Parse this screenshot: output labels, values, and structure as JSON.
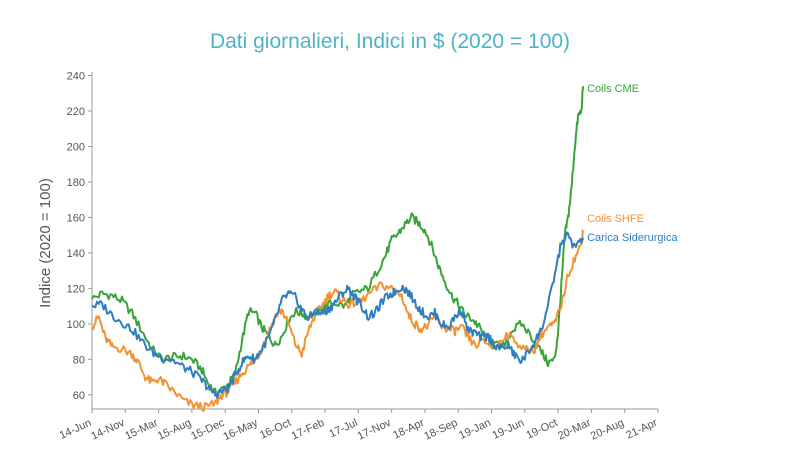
{
  "chart_data": {
    "type": "line",
    "title": "Dati giornalieri, Indici in $ (2020 = 100)",
    "xlabel": "",
    "ylabel": "Indice (2020 = 100)",
    "ylim": [
      52,
      242
    ],
    "y_ticks": [
      60,
      80,
      100,
      120,
      140,
      160,
      180,
      200,
      220,
      240
    ],
    "x_ticks": [
      "14-Jun",
      "14-Nov",
      "15-Mar",
      "15-Aug",
      "15-Dec",
      "16-May",
      "16-Oct",
      "17-Feb",
      "17-Jul",
      "17-Nov",
      "18-Apr",
      "18-Sep",
      "19-Jan",
      "19-Jun",
      "19-Oct",
      "20-Mar",
      "20-Aug",
      "21-Apr"
    ],
    "x_range": [
      "14-Jun",
      "21-Apr"
    ],
    "grid": false,
    "legend": "inline labels at right end of lines",
    "series": [
      {
        "name": "Coils CME",
        "color": "#3aa43a",
        "points": [
          [
            0,
            114
          ],
          [
            0.3,
            117
          ],
          [
            0.6,
            116
          ],
          [
            0.9,
            113
          ],
          [
            1.2,
            106
          ],
          [
            1.5,
            96
          ],
          [
            1.8,
            86
          ],
          [
            2.1,
            80
          ],
          [
            2.4,
            81
          ],
          [
            2.7,
            82
          ],
          [
            3.0,
            80
          ],
          [
            3.3,
            74
          ],
          [
            3.5,
            66
          ],
          [
            3.7,
            61
          ],
          [
            3.9,
            63
          ],
          [
            4.1,
            66
          ],
          [
            4.3,
            72
          ],
          [
            4.5,
            90
          ],
          [
            4.7,
            107
          ],
          [
            4.9,
            106
          ],
          [
            5.1,
            98
          ],
          [
            5.3,
            93
          ],
          [
            5.5,
            88
          ],
          [
            5.7,
            93
          ],
          [
            5.9,
            102
          ],
          [
            6.1,
            107
          ],
          [
            6.3,
            106
          ],
          [
            6.5,
            104
          ],
          [
            6.8,
            107
          ],
          [
            7.0,
            110
          ],
          [
            7.3,
            112
          ],
          [
            7.6,
            110
          ],
          [
            7.8,
            116
          ],
          [
            8.0,
            118
          ],
          [
            8.3,
            120
          ],
          [
            8.6,
            131
          ],
          [
            8.8,
            138
          ],
          [
            9.0,
            147
          ],
          [
            9.2,
            151
          ],
          [
            9.4,
            156
          ],
          [
            9.6,
            160
          ],
          [
            9.8,
            157
          ],
          [
            10.0,
            153
          ],
          [
            10.2,
            144
          ],
          [
            10.4,
            133
          ],
          [
            10.6,
            124
          ],
          [
            10.8,
            116
          ],
          [
            11.0,
            111
          ],
          [
            11.2,
            105
          ],
          [
            11.4,
            103
          ],
          [
            11.6,
            99
          ],
          [
            11.8,
            93
          ],
          [
            12.0,
            90
          ],
          [
            12.3,
            86
          ],
          [
            12.6,
            96
          ],
          [
            12.9,
            100
          ],
          [
            13.2,
            93
          ],
          [
            13.5,
            84
          ],
          [
            13.7,
            78
          ],
          [
            13.9,
            80
          ],
          [
            14.0,
            96
          ],
          [
            14.1,
            122
          ],
          [
            14.2,
            150
          ],
          [
            14.3,
            160
          ],
          [
            14.4,
            176
          ],
          [
            14.5,
            200
          ],
          [
            14.6,
            217
          ],
          [
            14.7,
            220
          ],
          [
            14.75,
            234
          ]
        ]
      },
      {
        "name": "Coils SHFE",
        "color": "#f39233",
        "points": [
          [
            0,
            98
          ],
          [
            0.2,
            104
          ],
          [
            0.4,
            92
          ],
          [
            0.6,
            87
          ],
          [
            0.9,
            86
          ],
          [
            1.2,
            83
          ],
          [
            1.4,
            78
          ],
          [
            1.6,
            70
          ],
          [
            1.8,
            67
          ],
          [
            2.0,
            69
          ],
          [
            2.2,
            66
          ],
          [
            2.5,
            61
          ],
          [
            2.8,
            56
          ],
          [
            3.1,
            54
          ],
          [
            3.4,
            53
          ],
          [
            3.7,
            55
          ],
          [
            3.9,
            60
          ],
          [
            4.1,
            62
          ],
          [
            4.3,
            67
          ],
          [
            4.5,
            72
          ],
          [
            4.7,
            76
          ],
          [
            4.9,
            80
          ],
          [
            5.1,
            86
          ],
          [
            5.3,
            95
          ],
          [
            5.5,
            104
          ],
          [
            5.7,
            108
          ],
          [
            5.9,
            100
          ],
          [
            6.1,
            89
          ],
          [
            6.3,
            83
          ],
          [
            6.5,
            96
          ],
          [
            6.7,
            105
          ],
          [
            6.9,
            110
          ],
          [
            7.1,
            116
          ],
          [
            7.3,
            118
          ],
          [
            7.5,
            114
          ],
          [
            7.7,
            111
          ],
          [
            7.9,
            112
          ],
          [
            8.1,
            113
          ],
          [
            8.4,
            118
          ],
          [
            8.7,
            122
          ],
          [
            9.0,
            120
          ],
          [
            9.3,
            116
          ],
          [
            9.5,
            105
          ],
          [
            9.7,
            100
          ],
          [
            9.9,
            97
          ],
          [
            10.1,
            99
          ],
          [
            10.3,
            104
          ],
          [
            10.5,
            99
          ],
          [
            10.7,
            97
          ],
          [
            10.9,
            96
          ],
          [
            11.1,
            98
          ],
          [
            11.3,
            92
          ],
          [
            11.5,
            88
          ],
          [
            11.8,
            90
          ],
          [
            12.1,
            86
          ],
          [
            12.4,
            94
          ],
          [
            12.7,
            91
          ],
          [
            13.0,
            85
          ],
          [
            13.3,
            86
          ],
          [
            13.5,
            94
          ],
          [
            13.7,
            98
          ],
          [
            13.9,
            100
          ],
          [
            14.1,
            111
          ],
          [
            14.3,
            128
          ],
          [
            14.5,
            137
          ],
          [
            14.7,
            145
          ],
          [
            14.75,
            153
          ]
        ]
      },
      {
        "name": "Carica Siderurgica",
        "color": "#2e7ec1",
        "points": [
          [
            0,
            110
          ],
          [
            0.3,
            111
          ],
          [
            0.6,
            105
          ],
          [
            0.9,
            101
          ],
          [
            1.2,
            97
          ],
          [
            1.5,
            90
          ],
          [
            1.8,
            84
          ],
          [
            2.1,
            81
          ],
          [
            2.4,
            80
          ],
          [
            2.7,
            76
          ],
          [
            3.0,
            73
          ],
          [
            3.3,
            68
          ],
          [
            3.5,
            64
          ],
          [
            3.7,
            60
          ],
          [
            3.9,
            62
          ],
          [
            4.1,
            64
          ],
          [
            4.3,
            71
          ],
          [
            4.5,
            78
          ],
          [
            4.7,
            82
          ],
          [
            4.9,
            80
          ],
          [
            5.1,
            86
          ],
          [
            5.3,
            92
          ],
          [
            5.5,
            102
          ],
          [
            5.7,
            113
          ],
          [
            5.9,
            117
          ],
          [
            6.1,
            115
          ],
          [
            6.3,
            108
          ],
          [
            6.5,
            103
          ],
          [
            6.7,
            107
          ],
          [
            6.9,
            106
          ],
          [
            7.1,
            108
          ],
          [
            7.3,
            112
          ],
          [
            7.5,
            117
          ],
          [
            7.7,
            120
          ],
          [
            7.9,
            115
          ],
          [
            8.1,
            110
          ],
          [
            8.3,
            104
          ],
          [
            8.5,
            106
          ],
          [
            8.7,
            112
          ],
          [
            8.9,
            116
          ],
          [
            9.1,
            118
          ],
          [
            9.3,
            121
          ],
          [
            9.5,
            118
          ],
          [
            9.7,
            112
          ],
          [
            9.9,
            107
          ],
          [
            10.1,
            104
          ],
          [
            10.3,
            106
          ],
          [
            10.5,
            100
          ],
          [
            10.7,
            98
          ],
          [
            10.9,
            104
          ],
          [
            11.1,
            108
          ],
          [
            11.3,
            96
          ],
          [
            11.5,
            95
          ],
          [
            11.7,
            92
          ],
          [
            11.9,
            93
          ],
          [
            12.1,
            88
          ],
          [
            12.3,
            86
          ],
          [
            12.5,
            88
          ],
          [
            12.7,
            82
          ],
          [
            12.9,
            79
          ],
          [
            13.1,
            84
          ],
          [
            13.3,
            90
          ],
          [
            13.5,
            97
          ],
          [
            13.7,
            110
          ],
          [
            13.9,
            128
          ],
          [
            14.1,
            146
          ],
          [
            14.3,
            150
          ],
          [
            14.5,
            143
          ],
          [
            14.7,
            147
          ],
          [
            14.75,
            148
          ]
        ]
      }
    ]
  }
}
